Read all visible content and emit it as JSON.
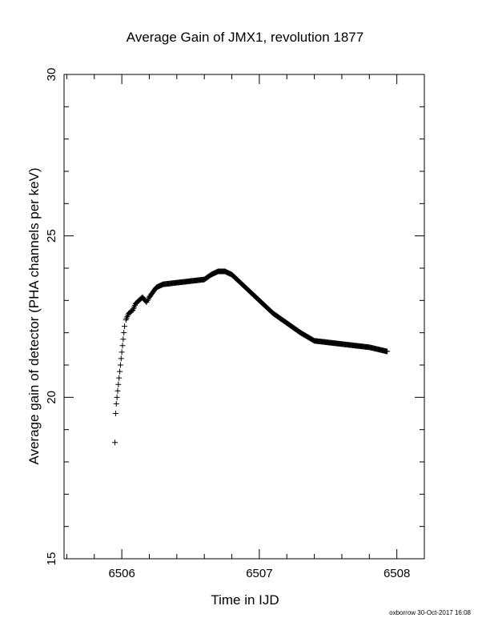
{
  "chart_data": {
    "type": "scatter",
    "title": "Average Gain of JMX1, revolution 1877",
    "xlabel": "Time in IJD",
    "ylabel": "Average gain of detector (PHA channels per keV)",
    "xlim": [
      6505.58,
      6508.2
    ],
    "ylim": [
      15,
      30
    ],
    "xticks": [
      "6506",
      "6507",
      "6508"
    ],
    "yticks": [
      "15",
      "20",
      "25",
      "30"
    ],
    "marker": "plus",
    "grid": false,
    "x": [
      6505.95,
      6505.955,
      6505.96,
      6505.965,
      6505.97,
      6505.975,
      6505.98,
      6505.985,
      6505.99,
      6505.995,
      6506.0,
      6506.005,
      6506.01,
      6506.015,
      6506.02,
      6506.03,
      6506.05,
      6506.08,
      6506.1,
      6506.15,
      6506.18,
      6506.2,
      6506.25,
      6506.3,
      6506.4,
      6506.5,
      6506.6,
      6506.65,
      6506.7,
      6506.75,
      6506.8,
      6506.85,
      6506.9,
      6506.95,
      6507.0,
      6507.1,
      6507.2,
      6507.3,
      6507.4,
      6507.5,
      6507.6,
      6507.7,
      6507.8,
      6507.9,
      6507.93
    ],
    "y": [
      18.6,
      19.5,
      19.8,
      20.0,
      20.2,
      20.4,
      20.6,
      20.8,
      21.0,
      21.2,
      21.4,
      21.6,
      21.8,
      22.0,
      22.2,
      22.4,
      22.6,
      22.7,
      22.9,
      23.1,
      22.95,
      23.1,
      23.4,
      23.5,
      23.55,
      23.6,
      23.65,
      23.8,
      23.9,
      23.9,
      23.8,
      23.6,
      23.4,
      23.2,
      23.0,
      22.6,
      22.3,
      22.0,
      21.75,
      21.7,
      21.65,
      21.6,
      21.55,
      21.45,
      21.42
    ]
  },
  "footer_text": "oxborrow 30-Oct-2017 16:08"
}
